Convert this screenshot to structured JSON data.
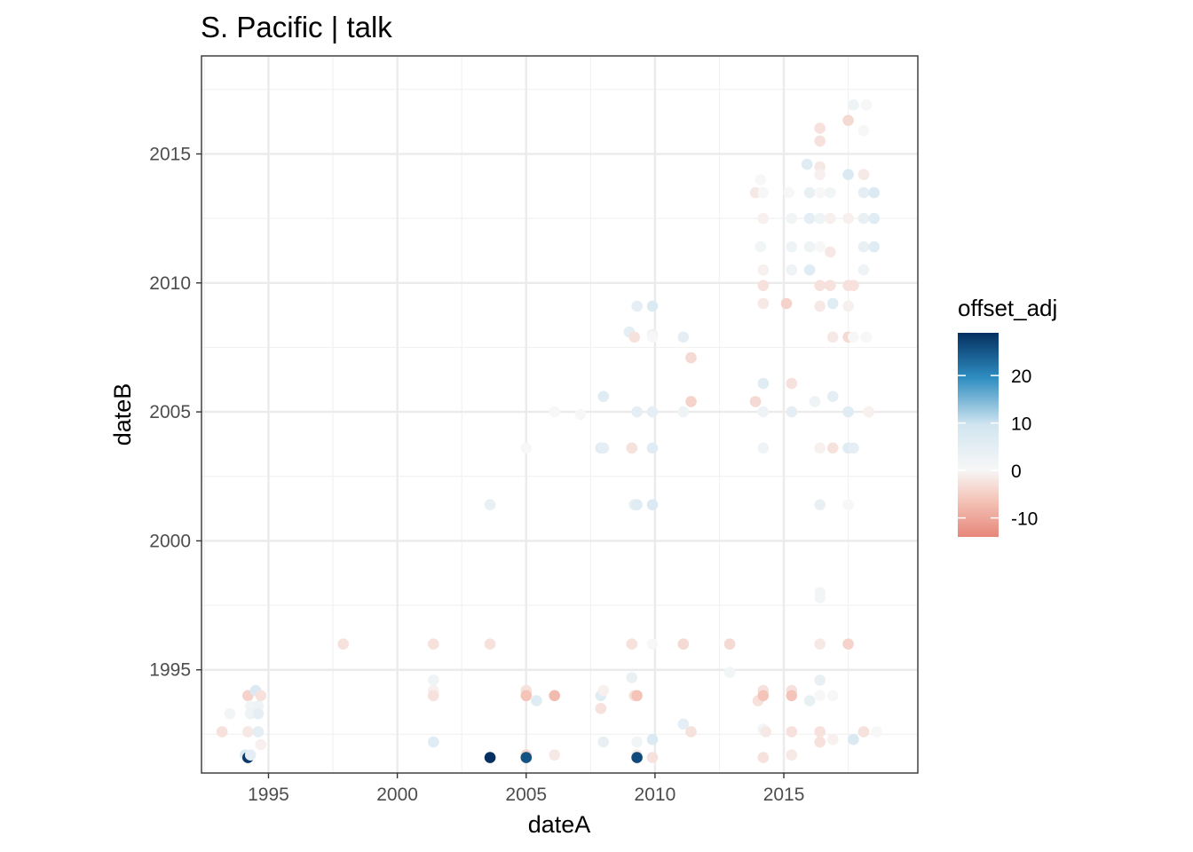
{
  "chart_data": {
    "type": "scatter",
    "title": "S. Pacific | talk",
    "xlabel": "dateA",
    "ylabel": "dateB",
    "xlim": [
      1992.4,
      2020.2
    ],
    "ylim": [
      1991.0,
      2018.8
    ],
    "x_ticks": [
      1995,
      2000,
      2005,
      2010,
      2015
    ],
    "y_ticks": [
      1995,
      2000,
      2005,
      2010,
      2015
    ],
    "grid": true,
    "legend": {
      "title": "offset_adj",
      "position": "right",
      "ticks": [
        20,
        10,
        0,
        -10
      ],
      "range": [
        -14,
        29
      ],
      "colors": {
        "high": "#053061",
        "upper_mid": "#2E8DC1",
        "light_blue": "#D1E5F0",
        "zero": "#F7F7F7",
        "low": "#E6877A"
      }
    },
    "points": [
      [
        1993.2,
        1992.6,
        -3
      ],
      [
        1993.5,
        1993.3,
        1
      ],
      [
        1994.1,
        1991.7,
        6
      ],
      [
        1994.2,
        1991.6,
        28
      ],
      [
        1994.3,
        1991.7,
        4
      ],
      [
        1994.2,
        1994.0,
        -5
      ],
      [
        1994.3,
        1993.6,
        1
      ],
      [
        1994.3,
        1993.3,
        2
      ],
      [
        1994.2,
        1992.6,
        -2
      ],
      [
        1994.5,
        1994.2,
        6
      ],
      [
        1994.6,
        1993.6,
        2
      ],
      [
        1994.6,
        1993.3,
        4
      ],
      [
        1994.6,
        1992.6,
        4
      ],
      [
        1994.7,
        1994.0,
        -3
      ],
      [
        1994.7,
        1992.1,
        -1
      ],
      [
        1997.9,
        1996.0,
        -3
      ],
      [
        2001.4,
        1996.0,
        -3
      ],
      [
        2001.4,
        1994.6,
        2
      ],
      [
        2001.4,
        1994.2,
        -1
      ],
      [
        2001.4,
        1994.0,
        -3
      ],
      [
        2001.4,
        1992.2,
        5
      ],
      [
        2003.6,
        2001.4,
        3
      ],
      [
        2003.6,
        1996.0,
        -3
      ],
      [
        2003.6,
        1991.6,
        32
      ],
      [
        2005.0,
        2003.6,
        0
      ],
      [
        2005.0,
        1994.2,
        -3
      ],
      [
        2005.0,
        1994.0,
        -7
      ],
      [
        2005.0,
        1991.7,
        -5
      ],
      [
        2005.0,
        1991.6,
        25
      ],
      [
        2005.4,
        1993.8,
        5
      ],
      [
        2006.1,
        2005.0,
        0
      ],
      [
        2006.1,
        1994.0,
        -8
      ],
      [
        2006.1,
        1991.7,
        -2
      ],
      [
        2007.1,
        2004.9,
        0
      ],
      [
        2007.9,
        2003.6,
        5
      ],
      [
        2008.0,
        2005.6,
        5
      ],
      [
        2008.0,
        2003.6,
        4
      ],
      [
        2007.9,
        1994.0,
        5
      ],
      [
        2008.0,
        1994.2,
        -1
      ],
      [
        2007.9,
        1993.5,
        -3
      ],
      [
        2008.0,
        1992.2,
        3
      ],
      [
        2009.0,
        2008.1,
        4
      ],
      [
        2009.2,
        2007.9,
        -3
      ],
      [
        2009.3,
        2009.1,
        4
      ],
      [
        2009.1,
        2003.6,
        -3
      ],
      [
        2009.2,
        2001.4,
        3
      ],
      [
        2009.3,
        2001.4,
        5
      ],
      [
        2009.3,
        2005.0,
        4
      ],
      [
        2009.1,
        1996.0,
        -3
      ],
      [
        2009.1,
        1994.7,
        3
      ],
      [
        2009.2,
        1994.0,
        -3
      ],
      [
        2009.3,
        1994.0,
        -7
      ],
      [
        2009.3,
        1992.2,
        1
      ],
      [
        2009.3,
        1991.7,
        -2
      ],
      [
        2009.3,
        1991.6,
        26
      ],
      [
        2009.9,
        2009.1,
        6
      ],
      [
        2009.9,
        2008.0,
        2
      ],
      [
        2009.9,
        2007.9,
        0
      ],
      [
        2009.9,
        2005.0,
        4
      ],
      [
        2009.9,
        2003.6,
        5
      ],
      [
        2009.9,
        2001.4,
        6
      ],
      [
        2009.9,
        1996.0,
        0
      ],
      [
        2009.9,
        1992.3,
        6
      ],
      [
        2009.9,
        1991.6,
        -3
      ],
      [
        2011.1,
        2007.9,
        4
      ],
      [
        2011.4,
        2007.1,
        -4
      ],
      [
        2011.4,
        2005.4,
        -5
      ],
      [
        2011.1,
        2005.0,
        2
      ],
      [
        2011.1,
        1996.0,
        -4
      ],
      [
        2011.1,
        1992.9,
        4
      ],
      [
        2011.4,
        1992.6,
        -3
      ],
      [
        2012.9,
        1996.0,
        -4
      ],
      [
        2012.9,
        1994.9,
        1
      ],
      [
        2013.9,
        2013.5,
        -2
      ],
      [
        2014.1,
        2014.0,
        0
      ],
      [
        2014.2,
        2013.5,
        0
      ],
      [
        2014.2,
        2012.5,
        -1
      ],
      [
        2014.1,
        2011.4,
        1
      ],
      [
        2014.2,
        2010.5,
        -1
      ],
      [
        2014.2,
        2009.9,
        -3
      ],
      [
        2014.2,
        2009.2,
        -2
      ],
      [
        2013.9,
        2005.4,
        -4
      ],
      [
        2014.2,
        2006.1,
        5
      ],
      [
        2014.2,
        2005.0,
        2
      ],
      [
        2014.2,
        2003.6,
        2
      ],
      [
        2014.0,
        1993.8,
        -3
      ],
      [
        2014.2,
        1994.2,
        -3
      ],
      [
        2014.2,
        1994.0,
        -7
      ],
      [
        2014.2,
        1992.7,
        1
      ],
      [
        2014.3,
        1992.6,
        -2
      ],
      [
        2014.2,
        1991.6,
        -3
      ],
      [
        2015.1,
        2009.2,
        -5
      ],
      [
        2015.2,
        2013.5,
        0
      ],
      [
        2015.3,
        2012.5,
        1
      ],
      [
        2015.3,
        2011.4,
        2
      ],
      [
        2015.3,
        2010.5,
        2
      ],
      [
        2015.3,
        2006.1,
        -3
      ],
      [
        2015.3,
        2005.0,
        4
      ],
      [
        2015.3,
        1994.2,
        -3
      ],
      [
        2015.3,
        1994.0,
        -7
      ],
      [
        2015.3,
        1992.6,
        -3
      ],
      [
        2015.3,
        1991.7,
        -2
      ],
      [
        2015.9,
        2014.6,
        5
      ],
      [
        2016.0,
        2013.5,
        3
      ],
      [
        2016.0,
        2012.5,
        4
      ],
      [
        2016.0,
        2011.4,
        2
      ],
      [
        2016.0,
        2010.5,
        5
      ],
      [
        2016.2,
        2005.4,
        2
      ],
      [
        2016.0,
        1993.8,
        3
      ],
      [
        2016.4,
        2016.0,
        -3
      ],
      [
        2016.4,
        2015.5,
        -3
      ],
      [
        2016.4,
        2014.5,
        -2
      ],
      [
        2016.4,
        2014.2,
        -1
      ],
      [
        2016.4,
        2013.5,
        0
      ],
      [
        2016.4,
        2012.5,
        2
      ],
      [
        2016.4,
        2011.4,
        0
      ],
      [
        2016.4,
        2009.9,
        -3
      ],
      [
        2016.4,
        2009.1,
        -2
      ],
      [
        2016.4,
        2003.6,
        -1
      ],
      [
        2016.4,
        2001.4,
        3
      ],
      [
        2016.4,
        1998.0,
        1
      ],
      [
        2016.4,
        1997.8,
        1
      ],
      [
        2016.4,
        1996.0,
        -2
      ],
      [
        2016.4,
        1994.6,
        3
      ],
      [
        2016.4,
        1994.0,
        0
      ],
      [
        2016.4,
        1992.2,
        -3
      ],
      [
        2016.4,
        1992.6,
        -3
      ],
      [
        2016.8,
        2013.5,
        1
      ],
      [
        2016.8,
        2012.5,
        -1
      ],
      [
        2016.8,
        2011.2,
        -2
      ],
      [
        2016.8,
        2009.9,
        -3
      ],
      [
        2016.9,
        2009.2,
        5
      ],
      [
        2016.9,
        2007.9,
        -2
      ],
      [
        2016.9,
        2005.6,
        4
      ],
      [
        2016.9,
        2003.6,
        -3
      ],
      [
        2016.9,
        1994.0,
        0
      ],
      [
        2016.9,
        1992.3,
        -1
      ],
      [
        2017.5,
        2016.3,
        -4
      ],
      [
        2017.5,
        2014.2,
        6
      ],
      [
        2017.5,
        2012.5,
        -1
      ],
      [
        2017.5,
        2009.9,
        -3
      ],
      [
        2017.5,
        2009.1,
        -1
      ],
      [
        2017.5,
        2007.9,
        -4
      ],
      [
        2017.5,
        2005.0,
        5
      ],
      [
        2017.5,
        2003.6,
        5
      ],
      [
        2017.5,
        2001.4,
        0
      ],
      [
        2017.5,
        1996.0,
        -5
      ],
      [
        2017.7,
        2016.9,
        2
      ],
      [
        2017.7,
        2009.9,
        -3
      ],
      [
        2017.7,
        2007.9,
        0
      ],
      [
        2017.7,
        2003.6,
        4
      ],
      [
        2017.7,
        1992.3,
        6
      ],
      [
        2018.1,
        2015.9,
        0
      ],
      [
        2018.1,
        2014.2,
        -2
      ],
      [
        2018.1,
        2013.5,
        4
      ],
      [
        2018.1,
        2012.5,
        3
      ],
      [
        2018.1,
        2011.4,
        3
      ],
      [
        2018.1,
        2010.5,
        2
      ],
      [
        2018.2,
        2016.9,
        0
      ],
      [
        2018.2,
        2007.9,
        0
      ],
      [
        2018.3,
        2005.0,
        -1
      ],
      [
        2018.1,
        1992.6,
        -3
      ],
      [
        2018.5,
        2013.5,
        6
      ],
      [
        2018.5,
        2012.5,
        5
      ],
      [
        2018.5,
        2011.4,
        5
      ],
      [
        2018.6,
        1992.6,
        0
      ]
    ]
  }
}
